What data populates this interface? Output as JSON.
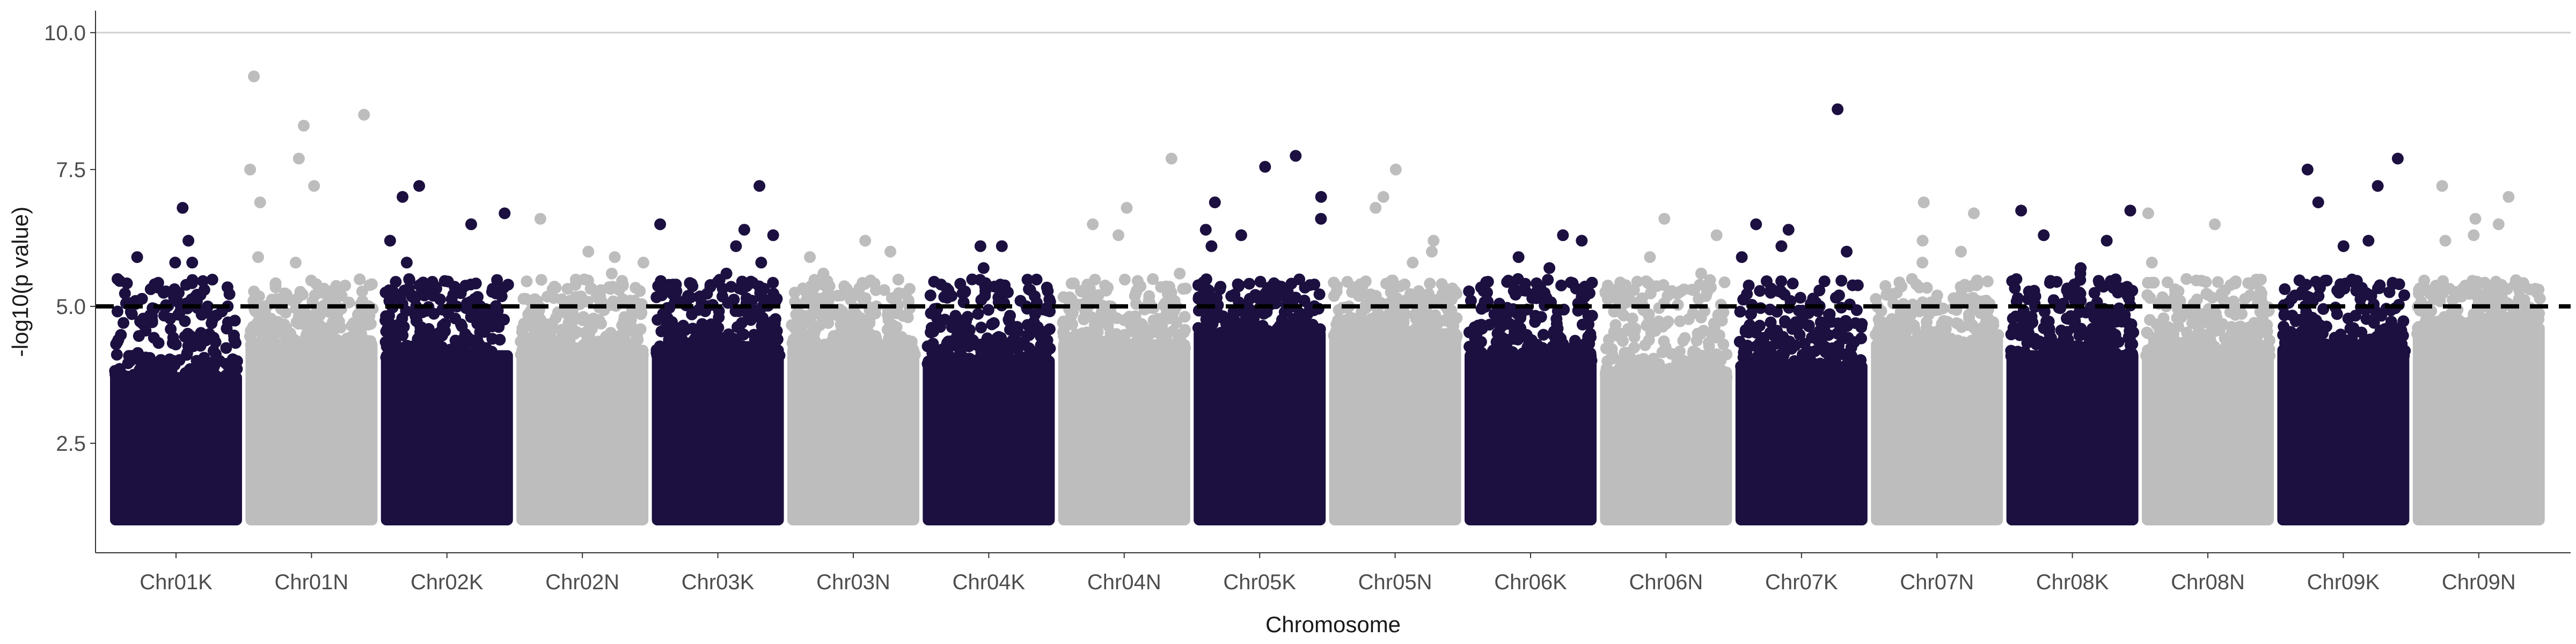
{
  "chart_data": {
    "type": "scatter",
    "subtype": "manhattan",
    "title": "",
    "xlabel": "Chromosome",
    "ylabel": "-log10(p value)",
    "ylim": [
      0.5,
      10.4
    ],
    "y_ticks": [
      2.5,
      5.0,
      7.5,
      10.0
    ],
    "y_tick_labels": [
      "2.5",
      "5.0",
      "7.5",
      "10.0"
    ],
    "grid": "horizontal lines at y ticks only where visible (10.0 line shown)",
    "significance_threshold": 5.0,
    "threshold_style": "dashed black",
    "point_min": 1.0,
    "colors": {
      "dark": "#1c1040",
      "light": "#bdbdbd",
      "threshold": "#000000"
    },
    "categories": [
      "Chr01K",
      "Chr01N",
      "Chr02K",
      "Chr02N",
      "Chr03K",
      "Chr03N",
      "Chr04K",
      "Chr04N",
      "Chr05K",
      "Chr05N",
      "Chr06K",
      "Chr06N",
      "Chr07K",
      "Chr07N",
      "Chr08K",
      "Chr08N",
      "Chr09K",
      "Chr09N"
    ],
    "series": [
      {
        "chromosome": "Chr01K",
        "color": "dark",
        "bulk_top": 3.8,
        "max": 6.8,
        "top_hits": [
          6.2,
          5.9,
          5.8,
          5.8,
          6.8,
          5.5
        ]
      },
      {
        "chromosome": "Chr01N",
        "color": "light",
        "bulk_top": 4.4,
        "max": 9.2,
        "top_hits": [
          9.2,
          8.5,
          8.3,
          7.7,
          7.5,
          7.2,
          6.9,
          5.8,
          5.9
        ]
      },
      {
        "chromosome": "Chr02K",
        "color": "dark",
        "bulk_top": 4.2,
        "max": 7.2,
        "top_hits": [
          7.0,
          7.2,
          6.7,
          6.5,
          6.2,
          5.8,
          5.4
        ]
      },
      {
        "chromosome": "Chr02N",
        "color": "light",
        "bulk_top": 4.3,
        "max": 6.6,
        "top_hits": [
          6.6,
          6.0,
          5.9,
          5.8,
          5.6
        ]
      },
      {
        "chromosome": "Chr03K",
        "color": "dark",
        "bulk_top": 4.3,
        "max": 7.2,
        "top_hits": [
          7.2,
          6.5,
          6.4,
          6.3,
          6.1,
          5.8,
          5.6
        ]
      },
      {
        "chromosome": "Chr03N",
        "color": "light",
        "bulk_top": 4.3,
        "max": 6.2,
        "top_hits": [
          6.2,
          6.0,
          5.9,
          5.6,
          5.4
        ]
      },
      {
        "chromosome": "Chr04K",
        "color": "dark",
        "bulk_top": 4.1,
        "max": 6.1,
        "top_hits": [
          6.1,
          6.1,
          5.7,
          5.4,
          5.3
        ]
      },
      {
        "chromosome": "Chr04N",
        "color": "light",
        "bulk_top": 4.4,
        "max": 7.7,
        "top_hits": [
          7.7,
          6.8,
          6.5,
          6.3,
          5.6
        ]
      },
      {
        "chromosome": "Chr05K",
        "color": "dark",
        "bulk_top": 4.6,
        "max": 7.75,
        "top_hits": [
          7.75,
          7.55,
          7.0,
          6.9,
          6.6,
          6.4,
          6.3,
          6.1
        ]
      },
      {
        "chromosome": "Chr05N",
        "color": "light",
        "bulk_top": 4.6,
        "max": 7.5,
        "top_hits": [
          7.5,
          7.0,
          6.8,
          6.2,
          6.0,
          5.8
        ]
      },
      {
        "chromosome": "Chr06K",
        "color": "dark",
        "bulk_top": 4.2,
        "max": 6.3,
        "top_hits": [
          6.3,
          6.2,
          5.9,
          5.7,
          5.5
        ]
      },
      {
        "chromosome": "Chr06N",
        "color": "light",
        "bulk_top": 3.9,
        "max": 6.6,
        "top_hits": [
          6.6,
          6.3,
          5.9,
          5.6
        ]
      },
      {
        "chromosome": "Chr07K",
        "color": "dark",
        "bulk_top": 4.0,
        "max": 8.6,
        "top_hits": [
          8.6,
          6.5,
          6.4,
          6.1,
          6.0,
          5.9
        ]
      },
      {
        "chromosome": "Chr07N",
        "color": "light",
        "bulk_top": 4.4,
        "max": 6.9,
        "top_hits": [
          6.9,
          6.7,
          6.2,
          6.0,
          5.8
        ]
      },
      {
        "chromosome": "Chr08K",
        "color": "dark",
        "bulk_top": 4.2,
        "max": 6.75,
        "top_hits": [
          6.75,
          6.75,
          6.3,
          6.2,
          5.7,
          5.6
        ]
      },
      {
        "chromosome": "Chr08N",
        "color": "light",
        "bulk_top": 4.3,
        "max": 6.7,
        "top_hits": [
          6.7,
          6.5,
          5.8,
          5.5
        ]
      },
      {
        "chromosome": "Chr09K",
        "color": "dark",
        "bulk_top": 4.3,
        "max": 7.7,
        "top_hits": [
          7.7,
          7.5,
          7.2,
          6.9,
          6.2,
          6.1,
          5.2
        ]
      },
      {
        "chromosome": "Chr09N",
        "color": "light",
        "bulk_top": 4.7,
        "max": 7.2,
        "top_hits": [
          7.2,
          7.0,
          6.6,
          6.5,
          6.3,
          6.2
        ]
      }
    ]
  }
}
